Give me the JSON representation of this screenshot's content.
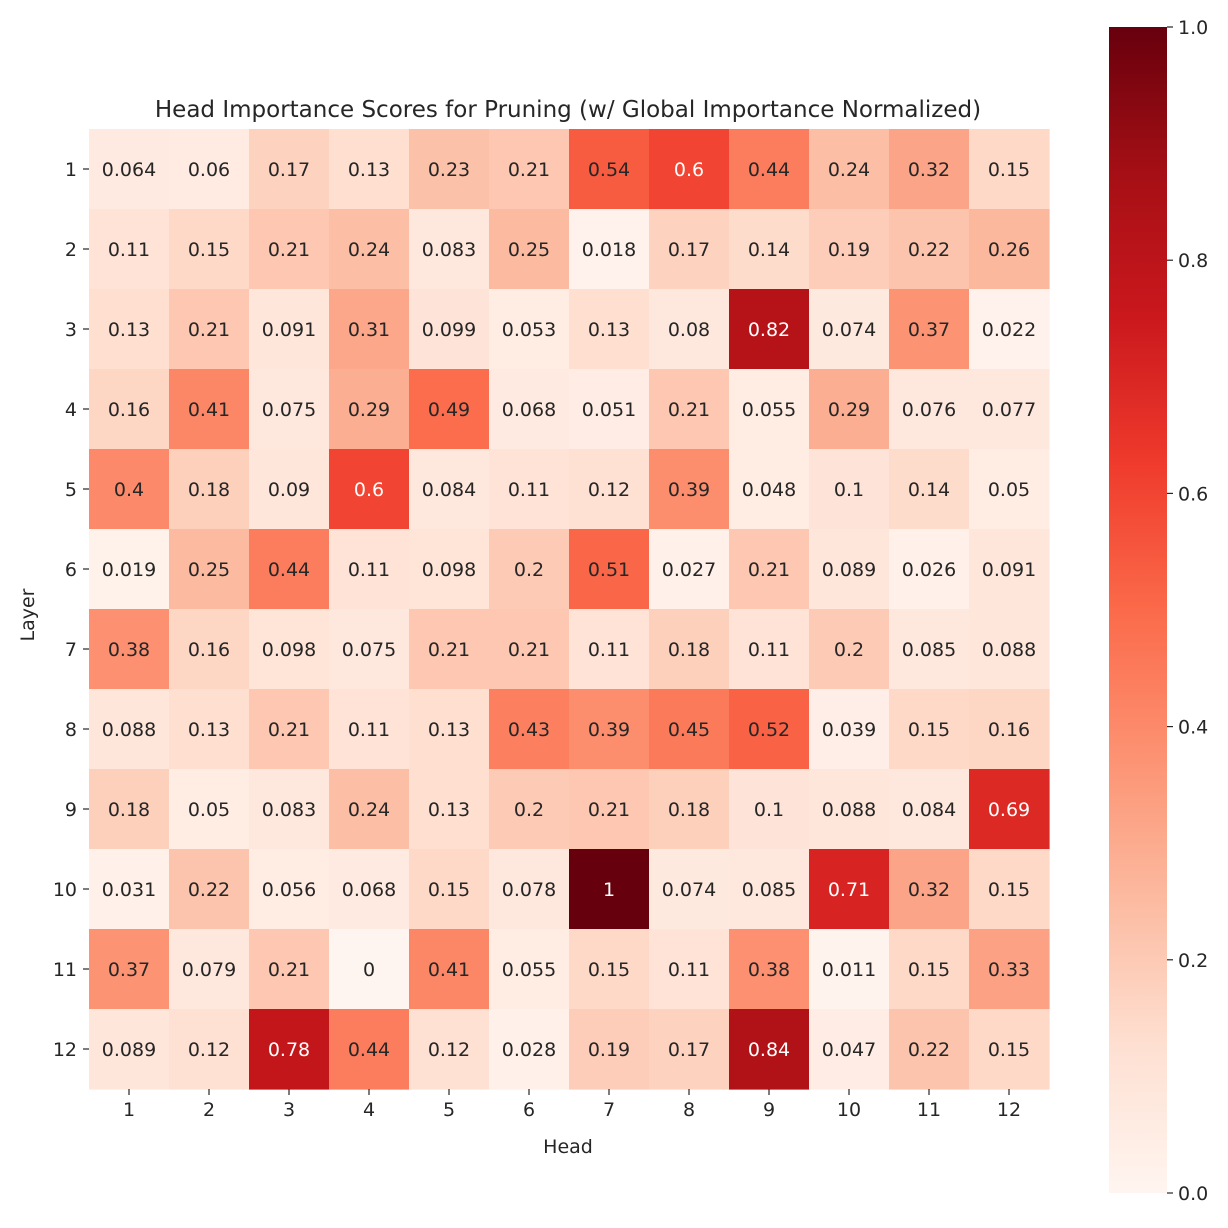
{
  "chart_data": {
    "type": "heatmap",
    "title": "Head Importance Scores for Pruning (w/ Global Importance Normalized)",
    "xlabel": "Head",
    "ylabel": "Layer",
    "x_categories": [
      "1",
      "2",
      "3",
      "4",
      "5",
      "6",
      "7",
      "8",
      "9",
      "10",
      "11",
      "12"
    ],
    "y_categories": [
      "1",
      "2",
      "3",
      "4",
      "5",
      "6",
      "7",
      "8",
      "9",
      "10",
      "11",
      "12"
    ],
    "values": [
      [
        "0.064",
        "0.06",
        "0.17",
        "0.13",
        "0.23",
        "0.21",
        "0.54",
        "0.6",
        "0.44",
        "0.24",
        "0.32",
        "0.15"
      ],
      [
        "0.11",
        "0.15",
        "0.21",
        "0.24",
        "0.083",
        "0.25",
        "0.018",
        "0.17",
        "0.14",
        "0.19",
        "0.22",
        "0.26"
      ],
      [
        "0.13",
        "0.21",
        "0.091",
        "0.31",
        "0.099",
        "0.053",
        "0.13",
        "0.08",
        "0.82",
        "0.074",
        "0.37",
        "0.022"
      ],
      [
        "0.16",
        "0.41",
        "0.075",
        "0.29",
        "0.49",
        "0.068",
        "0.051",
        "0.21",
        "0.055",
        "0.29",
        "0.076",
        "0.077"
      ],
      [
        "0.4",
        "0.18",
        "0.09",
        "0.6",
        "0.084",
        "0.11",
        "0.12",
        "0.39",
        "0.048",
        "0.1",
        "0.14",
        "0.05"
      ],
      [
        "0.019",
        "0.25",
        "0.44",
        "0.11",
        "0.098",
        "0.2",
        "0.51",
        "0.027",
        "0.21",
        "0.089",
        "0.026",
        "0.091"
      ],
      [
        "0.38",
        "0.16",
        "0.098",
        "0.075",
        "0.21",
        "0.21",
        "0.11",
        "0.18",
        "0.11",
        "0.2",
        "0.085",
        "0.088"
      ],
      [
        "0.088",
        "0.13",
        "0.21",
        "0.11",
        "0.13",
        "0.43",
        "0.39",
        "0.45",
        "0.52",
        "0.039",
        "0.15",
        "0.16"
      ],
      [
        "0.18",
        "0.05",
        "0.083",
        "0.24",
        "0.13",
        "0.2",
        "0.21",
        "0.18",
        "0.1",
        "0.088",
        "0.084",
        "0.69"
      ],
      [
        "0.031",
        "0.22",
        "0.056",
        "0.068",
        "0.15",
        "0.078",
        "1",
        "0.074",
        "0.085",
        "0.71",
        "0.32",
        "0.15"
      ],
      [
        "0.37",
        "0.079",
        "0.21",
        "0",
        "0.41",
        "0.055",
        "0.15",
        "0.11",
        "0.38",
        "0.011",
        "0.15",
        "0.33"
      ],
      [
        "0.089",
        "0.12",
        "0.78",
        "0.44",
        "0.12",
        "0.028",
        "0.19",
        "0.17",
        "0.84",
        "0.047",
        "0.22",
        "0.15"
      ]
    ],
    "colormap": "Reds",
    "vmin": 0,
    "vmax": 1,
    "colorbar": {
      "ticks": [
        "0.0",
        "0.2",
        "0.4",
        "0.6",
        "0.8",
        "1.0"
      ],
      "placement": "right"
    },
    "grid": false
  }
}
